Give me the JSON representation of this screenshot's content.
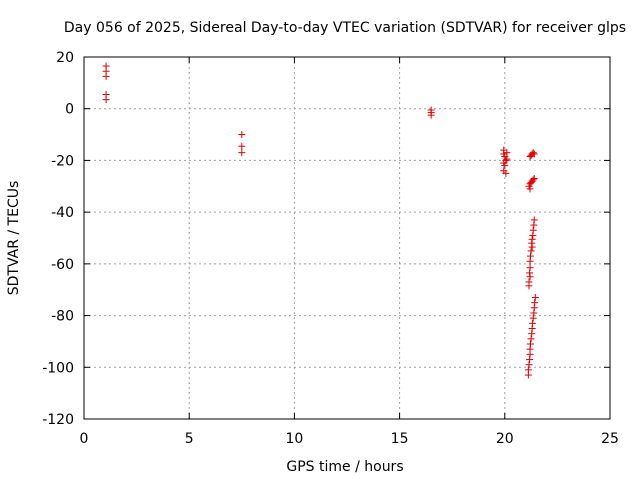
{
  "chart_data": {
    "type": "scatter",
    "title": "Day 056 of 2025, Sidereal Day-to-day VTEC variation (SDTVAR) for receiver glps",
    "xlabel": "GPS time / hours",
    "ylabel": "SDTVAR / TECUs",
    "xlim": [
      0,
      25
    ],
    "ylim": [
      -120,
      20
    ],
    "xticks": [
      0,
      5,
      10,
      15,
      20,
      25
    ],
    "yticks": [
      20,
      0,
      -20,
      -40,
      -60,
      -80,
      -100,
      -120
    ],
    "grid": true,
    "marker": "+",
    "color": "#e00000",
    "series": [
      {
        "name": "SDTVAR",
        "points": [
          [
            1.05,
            16.5
          ],
          [
            1.05,
            14.5
          ],
          [
            1.05,
            12.5
          ],
          [
            1.05,
            5.5
          ],
          [
            1.05,
            3.5
          ],
          [
            7.5,
            -10
          ],
          [
            7.5,
            -14.5
          ],
          [
            7.5,
            -17
          ],
          [
            16.5,
            -0.5
          ],
          [
            16.5,
            -1.5
          ],
          [
            16.5,
            -2.5
          ],
          [
            19.95,
            -16
          ],
          [
            19.95,
            -17.5
          ],
          [
            20.0,
            -18.5
          ],
          [
            20.05,
            -20
          ],
          [
            19.95,
            -21
          ],
          [
            20.0,
            -22
          ],
          [
            19.95,
            -24
          ],
          [
            20.05,
            -25
          ],
          [
            20.1,
            -17
          ],
          [
            20.1,
            -19.5
          ],
          [
            21.2,
            -18.5
          ],
          [
            21.25,
            -18
          ],
          [
            21.3,
            -17.5
          ],
          [
            21.35,
            -17
          ],
          [
            21.4,
            -17.5
          ],
          [
            21.15,
            -30
          ],
          [
            21.2,
            -29
          ],
          [
            21.25,
            -28.5
          ],
          [
            21.3,
            -28
          ],
          [
            21.35,
            -27.5
          ],
          [
            21.4,
            -27
          ],
          [
            21.2,
            -31
          ],
          [
            21.4,
            -43
          ],
          [
            21.38,
            -45
          ],
          [
            21.35,
            -47
          ],
          [
            21.33,
            -49
          ],
          [
            21.3,
            -50.5
          ],
          [
            21.28,
            -52
          ],
          [
            21.3,
            -53.5
          ],
          [
            21.25,
            -55
          ],
          [
            21.22,
            -57
          ],
          [
            21.2,
            -59
          ],
          [
            21.2,
            -61.5
          ],
          [
            21.18,
            -63.5
          ],
          [
            21.2,
            -65
          ],
          [
            21.15,
            -67
          ],
          [
            21.15,
            -68.5
          ],
          [
            21.45,
            -73
          ],
          [
            21.42,
            -75
          ],
          [
            21.4,
            -77
          ],
          [
            21.38,
            -79
          ],
          [
            21.35,
            -81
          ],
          [
            21.32,
            -83
          ],
          [
            21.3,
            -85
          ],
          [
            21.28,
            -87
          ],
          [
            21.25,
            -89
          ],
          [
            21.22,
            -91
          ],
          [
            21.2,
            -93
          ],
          [
            21.2,
            -95
          ],
          [
            21.18,
            -97
          ],
          [
            21.15,
            -99
          ],
          [
            21.12,
            -101
          ],
          [
            21.12,
            -103
          ]
        ]
      }
    ]
  }
}
